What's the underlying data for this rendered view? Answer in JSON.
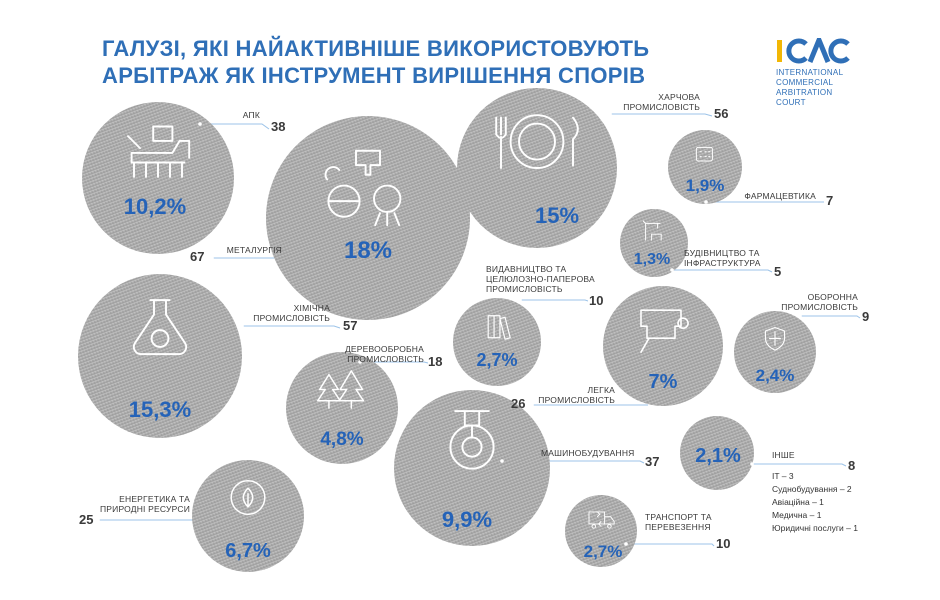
{
  "title": {
    "line1": "ГАЛУЗІ, ЯКІ НАЙАКТИВНІШЕ ВИКОРИСТОВУЮТЬ",
    "line2": "АРБІТРАЖ ЯК ІНСТРУМЕНТ ВИРІШЕННЯ СПОРІВ"
  },
  "logo": {
    "mark": "ICAC",
    "lines": [
      "INTERNATIONAL",
      "COMMERCIAL",
      "ARBITRATION",
      "COURT"
    ]
  },
  "colors": {
    "accent": "#2563b8",
    "bubble": "#a9a9a9",
    "text": "#3a3a3a"
  },
  "chart_data": {
    "type": "bubble",
    "items": [
      {
        "label": [
          "АПК"
        ],
        "count": "38",
        "share": "10,2%",
        "value": 10.2,
        "icon": "harvester-icon"
      },
      {
        "label": [
          "МЕТАЛУРГІЯ"
        ],
        "count": "67",
        "share": "18%",
        "value": 18,
        "icon": "metallurgy-icon"
      },
      {
        "label": [
          "ХАРЧОВА",
          "ПРОМИСЛОВІСТЬ"
        ],
        "count": "56",
        "share": "15%",
        "value": 15,
        "icon": "plate-cutlery-icon"
      },
      {
        "label": [
          "ФАРМАЦЕВТИКА"
        ],
        "count": "7",
        "share": "1,9%",
        "value": 1.9,
        "icon": "pills-icon"
      },
      {
        "label": [
          "БУДІВНИЦТВО ТА",
          "ІНФРАСТРУКТУРА"
        ],
        "count": "5",
        "share": "1,3%",
        "value": 1.3,
        "icon": "crane-icon"
      },
      {
        "label": [
          "ХІМІЧНА",
          "ПРОМИСЛОВІСТЬ"
        ],
        "count": "57",
        "share": "15,3%",
        "value": 15.3,
        "icon": "flask-gear-icon"
      },
      {
        "label": [
          "ВИДАВНИЦТВО ТА",
          "ЦЕЛЮЛОЗНО-ПАПЕРОВА",
          "ПРОМИСЛОВІСТЬ"
        ],
        "count": "10",
        "share": "2,7%",
        "value": 2.7,
        "icon": "books-icon"
      },
      {
        "label": [
          "ЛЕГКА",
          "ПРОМИСЛОВІСТЬ"
        ],
        "count": "26",
        "share": "7%",
        "value": 7,
        "icon": "sewing-machine-icon"
      },
      {
        "label": [
          "ОБОРОННА",
          "ПРОМИСЛОВІСТЬ"
        ],
        "count": "9",
        "share": "2,4%",
        "value": 2.4,
        "icon": "shield-icon"
      },
      {
        "label": [
          "ДЕРЕВООБРОБНА",
          "ПРОМИСЛОВІСТЬ"
        ],
        "count": "18",
        "share": "4,8%",
        "value": 4.8,
        "icon": "trees-icon"
      },
      {
        "label": [
          "МАШИНОБУДУВАННЯ"
        ],
        "count": "37",
        "share": "9,9%",
        "value": 9.9,
        "icon": "gear-press-icon"
      },
      {
        "label": [
          "ІНШЕ"
        ],
        "count": "8",
        "share": "2,1%",
        "value": 2.1,
        "icon": ""
      },
      {
        "label": [
          "ЕНЕРГЕТИКА ТА",
          "ПРИРОДНІ РЕСУРСИ"
        ],
        "count": "25",
        "share": "6,7%",
        "value": 6.7,
        "icon": "gear-leaf-icon"
      },
      {
        "label": [
          "ТРАНСПОРТ ТА",
          "ПЕРЕВЕЗЕННЯ"
        ],
        "count": "10",
        "share": "2,7%",
        "value": 2.7,
        "icon": "truck-icon"
      }
    ],
    "other_breakdown": [
      {
        "label": "IT",
        "count": "3"
      },
      {
        "label": "Суднобудування",
        "count": "2"
      },
      {
        "label": "Авіаційна",
        "count": "1"
      },
      {
        "label": "Медична",
        "count": "1"
      },
      {
        "label": "Юридичні послуги",
        "count": "1"
      }
    ]
  }
}
